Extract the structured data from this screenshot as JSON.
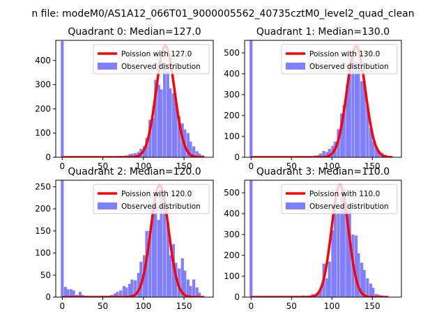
{
  "suptitle": "n file: modeM0/AS1A12_066T01_9000005562_40735cztM0_level2_quad_clean",
  "colors": {
    "histogram": "#8080ff",
    "poisson": "#ff0000",
    "axis": "#000000"
  },
  "chart_data": [
    {
      "type": "bar",
      "title": "Quadrant 0: Median=127.0",
      "xlim": [
        -8,
        186
      ],
      "ylim": [
        0,
        483
      ],
      "xticks": [
        0,
        50,
        100,
        150
      ],
      "yticks": [
        0,
        100,
        200,
        300,
        400
      ],
      "legend_position": "upper right",
      "legend": [
        "Poission with 127.0",
        "Observed distribution"
      ],
      "median": 127,
      "histogram": {
        "bin_width": 3.6,
        "bins": [
          {
            "x": 0,
            "count": 480
          },
          {
            "x": 32,
            "count": 3
          },
          {
            "x": 43,
            "count": 3
          },
          {
            "x": 54,
            "count": 3
          },
          {
            "x": 64,
            "count": 3
          },
          {
            "x": 72,
            "count": 6
          },
          {
            "x": 76,
            "count": 5
          },
          {
            "x": 79,
            "count": 8
          },
          {
            "x": 83,
            "count": 12
          },
          {
            "x": 86,
            "count": 15
          },
          {
            "x": 90,
            "count": 17
          },
          {
            "x": 94,
            "count": 22
          },
          {
            "x": 97,
            "count": 35
          },
          {
            "x": 101,
            "count": 45
          },
          {
            "x": 104,
            "count": 80
          },
          {
            "x": 108,
            "count": 155
          },
          {
            "x": 112,
            "count": 162
          },
          {
            "x": 115,
            "count": 320
          },
          {
            "x": 119,
            "count": 300
          },
          {
            "x": 122,
            "count": 280
          },
          {
            "x": 126,
            "count": 390
          },
          {
            "x": 130,
            "count": 355
          },
          {
            "x": 133,
            "count": 285
          },
          {
            "x": 137,
            "count": 265
          },
          {
            "x": 140,
            "count": 230
          },
          {
            "x": 144,
            "count": 170
          },
          {
            "x": 148,
            "count": 140
          },
          {
            "x": 151,
            "count": 115
          },
          {
            "x": 155,
            "count": 100
          },
          {
            "x": 158,
            "count": 65
          },
          {
            "x": 162,
            "count": 45
          },
          {
            "x": 166,
            "count": 25
          },
          {
            "x": 169,
            "count": 15
          },
          {
            "x": 173,
            "count": 8
          }
        ]
      },
      "poisson": {
        "x_start": 0,
        "x_end": 175,
        "peak": 460
      }
    },
    {
      "type": "bar",
      "title": "Quadrant 1: Median=130.0",
      "xlim": [
        -8,
        186
      ],
      "ylim": [
        0,
        560
      ],
      "xticks": [
        0,
        50,
        100,
        150
      ],
      "yticks": [
        0,
        100,
        200,
        300,
        400,
        500
      ],
      "legend_position": "upper right",
      "legend": [
        "Poission with 130.0",
        "Observed distribution"
      ],
      "median": 130,
      "histogram": {
        "bin_width": 3.6,
        "bins": [
          {
            "x": 0,
            "count": 560
          },
          {
            "x": 40,
            "count": 3
          },
          {
            "x": 65,
            "count": 3
          },
          {
            "x": 79,
            "count": 8
          },
          {
            "x": 83,
            "count": 10
          },
          {
            "x": 86,
            "count": 18
          },
          {
            "x": 90,
            "count": 30
          },
          {
            "x": 94,
            "count": 25
          },
          {
            "x": 97,
            "count": 40
          },
          {
            "x": 101,
            "count": 55
          },
          {
            "x": 104,
            "count": 75
          },
          {
            "x": 108,
            "count": 135
          },
          {
            "x": 112,
            "count": 210
          },
          {
            "x": 115,
            "count": 250
          },
          {
            "x": 119,
            "count": 350
          },
          {
            "x": 122,
            "count": 420
          },
          {
            "x": 126,
            "count": 500
          },
          {
            "x": 130,
            "count": 455
          },
          {
            "x": 133,
            "count": 440
          },
          {
            "x": 137,
            "count": 365
          },
          {
            "x": 140,
            "count": 365
          },
          {
            "x": 144,
            "count": 250
          },
          {
            "x": 148,
            "count": 140
          },
          {
            "x": 151,
            "count": 75
          },
          {
            "x": 155,
            "count": 50
          },
          {
            "x": 158,
            "count": 35
          },
          {
            "x": 162,
            "count": 22
          },
          {
            "x": 166,
            "count": 12
          },
          {
            "x": 169,
            "count": 6
          }
        ]
      },
      "poisson": {
        "x_start": 0,
        "x_end": 175,
        "peak": 532
      }
    },
    {
      "type": "bar",
      "title": "Quadrant 2: Median=120.0",
      "xlim": [
        -8,
        186
      ],
      "ylim": [
        0,
        265
      ],
      "xticks": [
        0,
        50,
        100,
        150
      ],
      "yticks": [
        0,
        50,
        100,
        150,
        200,
        250
      ],
      "legend_position": "upper right",
      "legend": [
        "Poission with 120.0",
        "Observed distribution"
      ],
      "median": 120,
      "histogram": {
        "bin_width": 3.6,
        "bins": [
          {
            "x": 0,
            "count": 265
          },
          {
            "x": 4,
            "count": 23
          },
          {
            "x": 7,
            "count": 18
          },
          {
            "x": 11,
            "count": 18
          },
          {
            "x": 14,
            "count": 15
          },
          {
            "x": 18,
            "count": 5
          },
          {
            "x": 22,
            "count": 12
          },
          {
            "x": 25,
            "count": 5
          },
          {
            "x": 29,
            "count": 3
          },
          {
            "x": 50,
            "count": 3
          },
          {
            "x": 54,
            "count": 3
          },
          {
            "x": 58,
            "count": 3
          },
          {
            "x": 61,
            "count": 5
          },
          {
            "x": 65,
            "count": 8
          },
          {
            "x": 68,
            "count": 12
          },
          {
            "x": 72,
            "count": 15
          },
          {
            "x": 76,
            "count": 25
          },
          {
            "x": 79,
            "count": 22
          },
          {
            "x": 83,
            "count": 30
          },
          {
            "x": 86,
            "count": 40
          },
          {
            "x": 90,
            "count": 38
          },
          {
            "x": 94,
            "count": 55
          },
          {
            "x": 97,
            "count": 80
          },
          {
            "x": 101,
            "count": 95
          },
          {
            "x": 104,
            "count": 150
          },
          {
            "x": 108,
            "count": 150
          },
          {
            "x": 112,
            "count": 215
          },
          {
            "x": 115,
            "count": 205
          },
          {
            "x": 119,
            "count": 175
          },
          {
            "x": 122,
            "count": 230
          },
          {
            "x": 126,
            "count": 205
          },
          {
            "x": 130,
            "count": 170
          },
          {
            "x": 133,
            "count": 95
          },
          {
            "x": 137,
            "count": 120
          },
          {
            "x": 140,
            "count": 78
          },
          {
            "x": 144,
            "count": 65
          },
          {
            "x": 148,
            "count": 88
          },
          {
            "x": 151,
            "count": 60
          },
          {
            "x": 155,
            "count": 40
          },
          {
            "x": 158,
            "count": 25
          },
          {
            "x": 162,
            "count": 40
          },
          {
            "x": 166,
            "count": 22
          },
          {
            "x": 169,
            "count": 10
          }
        ]
      },
      "poisson": {
        "x_start": 0,
        "x_end": 175,
        "peak": 254
      }
    },
    {
      "type": "bar",
      "title": "Quadrant 3: Median=110.0",
      "xlim": [
        -8,
        186
      ],
      "ylim": [
        0,
        560
      ],
      "xticks": [
        0,
        50,
        100,
        150
      ],
      "yticks": [
        0,
        100,
        200,
        300,
        400,
        500
      ],
      "legend_position": "upper right",
      "legend": [
        "Poission with 110.0",
        "Observed distribution"
      ],
      "median": 110,
      "histogram": {
        "bin_width": 3.6,
        "bins": [
          {
            "x": 0,
            "count": 560
          },
          {
            "x": 25,
            "count": 3
          },
          {
            "x": 40,
            "count": 5
          },
          {
            "x": 50,
            "count": 3
          },
          {
            "x": 58,
            "count": 5
          },
          {
            "x": 65,
            "count": 8
          },
          {
            "x": 68,
            "count": 5
          },
          {
            "x": 72,
            "count": 8
          },
          {
            "x": 76,
            "count": 15
          },
          {
            "x": 79,
            "count": 12
          },
          {
            "x": 83,
            "count": 25
          },
          {
            "x": 86,
            "count": 40
          },
          {
            "x": 90,
            "count": 160
          },
          {
            "x": 94,
            "count": 90
          },
          {
            "x": 97,
            "count": 170
          },
          {
            "x": 101,
            "count": 320
          },
          {
            "x": 104,
            "count": 430
          },
          {
            "x": 108,
            "count": 410
          },
          {
            "x": 112,
            "count": 500
          },
          {
            "x": 115,
            "count": 485
          },
          {
            "x": 119,
            "count": 415
          },
          {
            "x": 122,
            "count": 445
          },
          {
            "x": 126,
            "count": 300
          },
          {
            "x": 130,
            "count": 295
          },
          {
            "x": 133,
            "count": 210
          },
          {
            "x": 137,
            "count": 165
          },
          {
            "x": 140,
            "count": 130
          },
          {
            "x": 144,
            "count": 90
          },
          {
            "x": 148,
            "count": 65
          },
          {
            "x": 151,
            "count": 45
          },
          {
            "x": 155,
            "count": 15
          },
          {
            "x": 158,
            "count": 12
          },
          {
            "x": 162,
            "count": 8
          },
          {
            "x": 166,
            "count": 5
          }
        ]
      },
      "poisson": {
        "x_start": 0,
        "x_end": 170,
        "peak": 538
      }
    }
  ]
}
